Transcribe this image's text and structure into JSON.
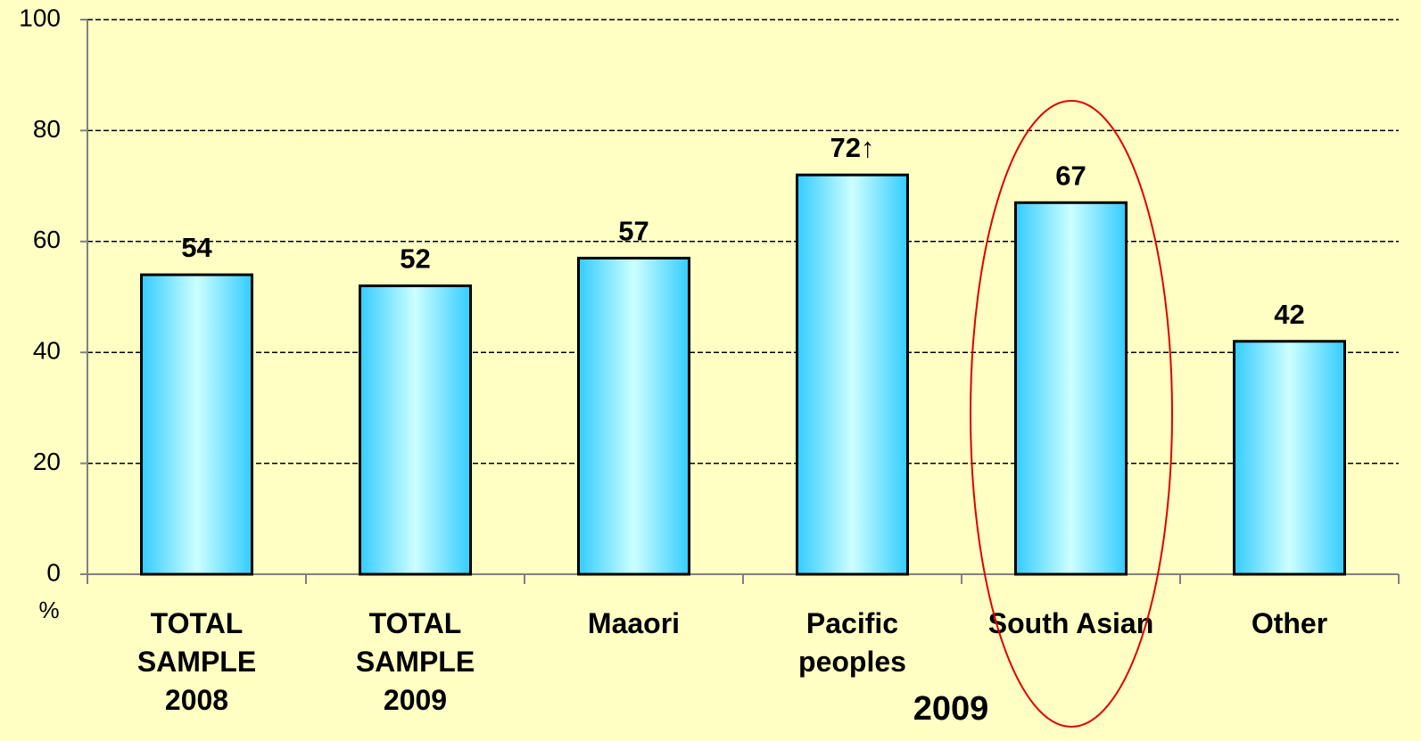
{
  "chart_data": {
    "type": "bar",
    "categories": [
      "TOTAL SAMPLE 2008",
      "TOTAL SAMPLE 2009",
      "Maaori",
      "Pacific peoples",
      "South Asian",
      "Other"
    ],
    "values": [
      54,
      52,
      57,
      72,
      67,
      42
    ],
    "value_labels": [
      "54",
      "52",
      "57",
      "72↑",
      "67",
      "42"
    ],
    "ylim": [
      0,
      100
    ],
    "yticks": [
      0,
      20,
      40,
      60,
      80,
      100
    ],
    "grid": true,
    "y_label": "%",
    "annotation": "2009",
    "color": "#33ccff"
  }
}
